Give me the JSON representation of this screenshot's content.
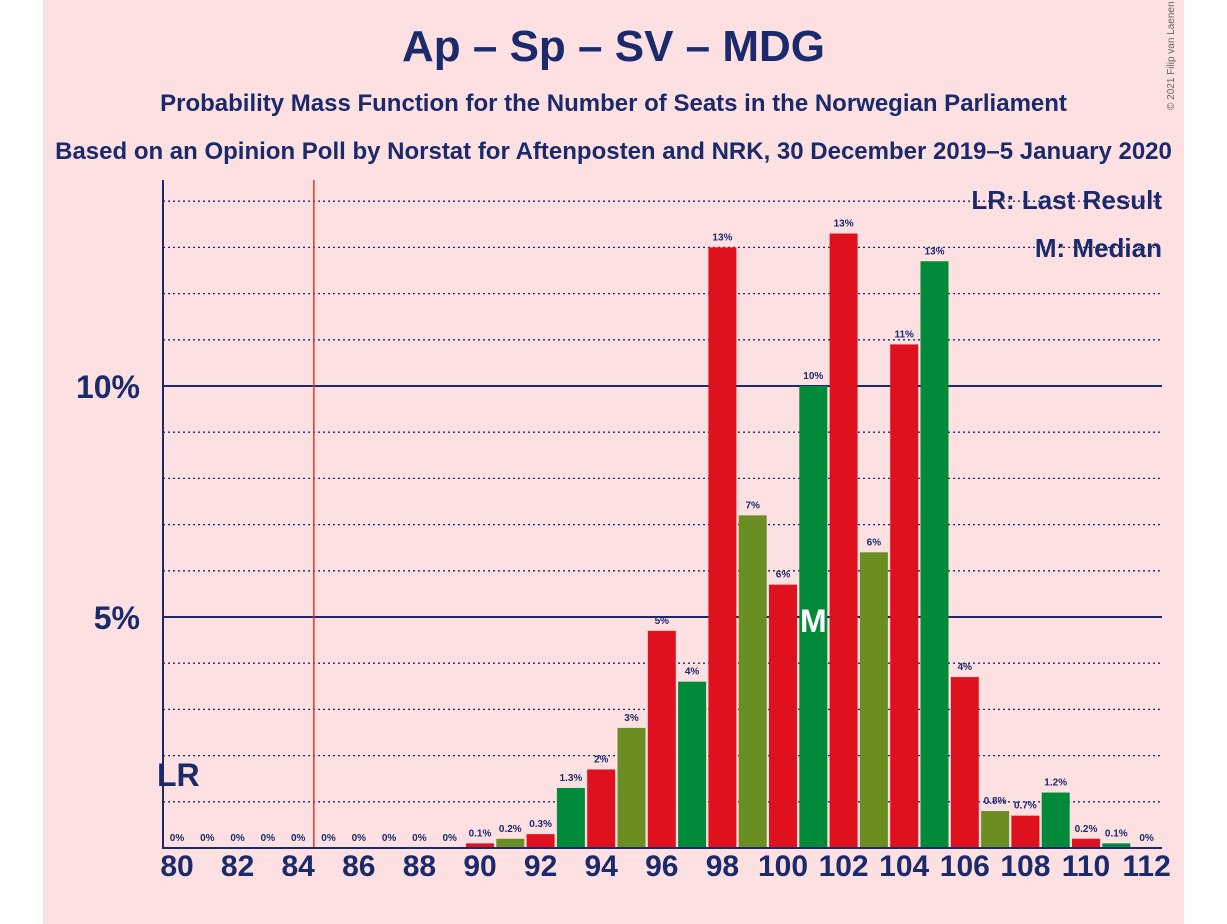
{
  "title": "Ap – Sp – SV – MDG",
  "subtitle": "Probability Mass Function for the Number of Seats in the Norwegian Parliament",
  "subtitle2": "Based on an Opinion Poll by Norstat for Aftenposten and NRK, 30 December 2019–5 January 2020",
  "copyright": "© 2021 Filip van Laenen",
  "legend": {
    "last_result": "LR: Last Result",
    "median": "M: Median"
  },
  "colors": {
    "red": "#e0111f",
    "green": "#008a3a",
    "olive": "#6b8e23",
    "navy": "#1b2a6b",
    "marker": "#e8322a",
    "background": "#fde0e2"
  },
  "chart_data": {
    "type": "bar",
    "x": [
      80,
      81,
      82,
      83,
      84,
      85,
      86,
      87,
      88,
      89,
      90,
      91,
      92,
      93,
      94,
      95,
      96,
      97,
      98,
      99,
      100,
      101,
      102,
      103,
      104,
      105,
      106,
      107,
      108,
      109,
      110,
      111,
      112
    ],
    "values": [
      0,
      0,
      0,
      0,
      0,
      0,
      0,
      0,
      0,
      0,
      0.1,
      0.2,
      0.3,
      1.3,
      1.7,
      2.6,
      4.7,
      3.6,
      13.0,
      7.2,
      5.7,
      10.0,
      13.3,
      6.4,
      10.9,
      12.7,
      3.7,
      0.8,
      0.7,
      1.2,
      0.2,
      0.1,
      0
    ],
    "data_labels": [
      "0%",
      "0%",
      "0%",
      "0%",
      "0%",
      "0%",
      "0%",
      "0%",
      "0%",
      "0%",
      "0.1%",
      "0.2%",
      "0.3%",
      "1.3%",
      "2%",
      "3%",
      "5%",
      "4%",
      "13%",
      "7%",
      "6%",
      "10%",
      "13%",
      "6%",
      "11%",
      "13%",
      "4%",
      "0.8%",
      "0.7%",
      "1.2%",
      "0.2%",
      "0.1%",
      "0%"
    ],
    "colors": [
      "red",
      "green",
      "red",
      "green",
      "olive",
      "red",
      "green",
      "olive",
      "red",
      "green",
      "red",
      "olive",
      "red",
      "green",
      "red",
      "olive",
      "red",
      "green",
      "red",
      "olive",
      "red",
      "green",
      "red",
      "olive",
      "red",
      "green",
      "red",
      "olive",
      "red",
      "green",
      "red",
      "green",
      "red"
    ],
    "x_tick_labels": [
      "80",
      "82",
      "84",
      "86",
      "88",
      "90",
      "92",
      "94",
      "96",
      "98",
      "100",
      "102",
      "104",
      "106",
      "108",
      "110",
      "112"
    ],
    "y_tick_labels": [
      {
        "value": 5,
        "label": "5%"
      },
      {
        "value": 10,
        "label": "10%"
      }
    ],
    "ylim": [
      0,
      14.3
    ],
    "last_result": 80,
    "last_result_label": "LR",
    "last_result_line": 85,
    "median": 101,
    "median_label": "M"
  }
}
